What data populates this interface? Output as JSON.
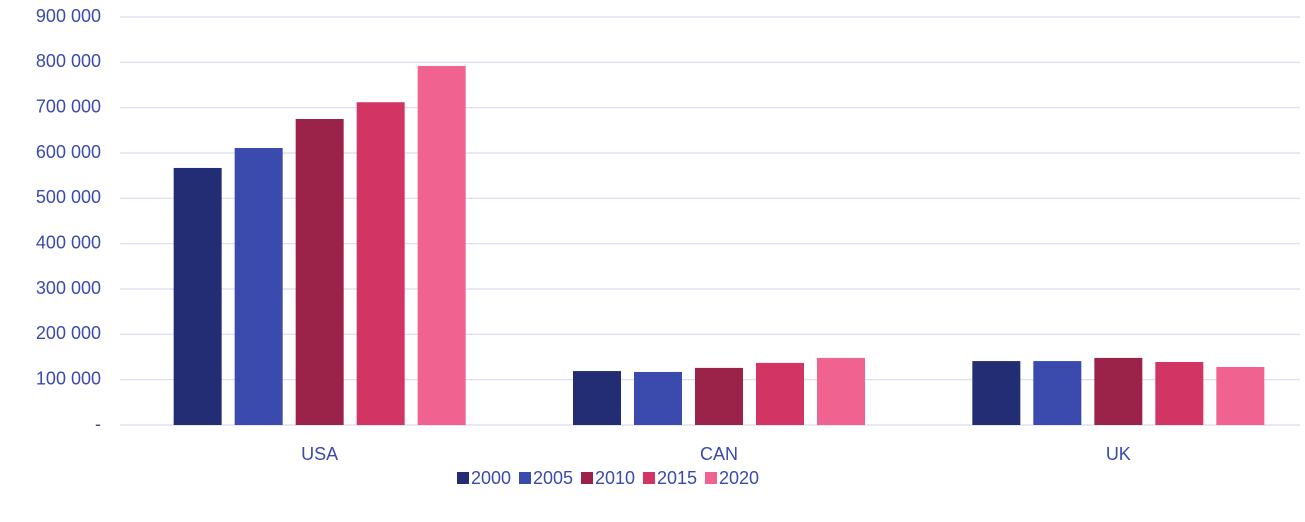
{
  "chart_data": {
    "type": "bar",
    "categories": [
      "USA",
      "CAN",
      "UK"
    ],
    "series": [
      {
        "name": "2000",
        "color": "#222d73",
        "values": [
          567000,
          119000,
          141000
        ]
      },
      {
        "name": "2005",
        "color": "#3a4aad",
        "values": [
          611000,
          117000,
          141000
        ]
      },
      {
        "name": "2010",
        "color": "#9b2349",
        "values": [
          675000,
          126000,
          148000
        ]
      },
      {
        "name": "2015",
        "color": "#d23464",
        "values": [
          712000,
          137000,
          139000
        ]
      },
      {
        "name": "2020",
        "color": "#f06290",
        "values": [
          792000,
          148000,
          128000
        ]
      }
    ],
    "ylim": [
      0,
      900000
    ],
    "yticks": [
      {
        "value": 0,
        "label": "-"
      },
      {
        "value": 100000,
        "label": "100 000"
      },
      {
        "value": 200000,
        "label": "200 000"
      },
      {
        "value": 300000,
        "label": "300 000"
      },
      {
        "value": 400000,
        "label": "400 000"
      },
      {
        "value": 500000,
        "label": "500 000"
      },
      {
        "value": 600000,
        "label": "600 000"
      },
      {
        "value": 700000,
        "label": "700 000"
      },
      {
        "value": 800000,
        "label": "800 000"
      },
      {
        "value": 900000,
        "label": "900 000"
      }
    ],
    "grid": true,
    "legend": "bottom"
  }
}
